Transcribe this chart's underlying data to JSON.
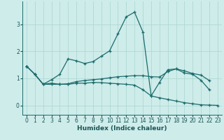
{
  "xlabel": "Humidex (Indice chaleur)",
  "bg_color": "#ceecea",
  "grid_color": "#aed8d4",
  "line_color": "#1a6b6b",
  "xlim": [
    -0.5,
    23.5
  ],
  "ylim": [
    -0.35,
    3.85
  ],
  "yticks": [
    0,
    1,
    2,
    3
  ],
  "xticks": [
    0,
    1,
    2,
    3,
    4,
    5,
    6,
    7,
    8,
    9,
    10,
    11,
    12,
    13,
    14,
    15,
    16,
    17,
    18,
    19,
    20,
    21,
    22,
    23
  ],
  "series": [
    {
      "x": [
        0,
        1,
        2,
        3,
        4,
        5,
        6,
        7,
        8,
        9,
        10,
        11,
        12,
        13,
        14,
        15,
        16,
        17,
        18,
        19,
        20,
        21,
        22
      ],
      "y": [
        1.45,
        1.15,
        0.78,
        0.95,
        1.15,
        1.72,
        1.65,
        1.55,
        1.62,
        1.82,
        2.02,
        2.65,
        3.28,
        3.45,
        2.72,
        0.35,
        0.85,
        1.32,
        1.35,
        1.2,
        1.15,
        0.93,
        0.58
      ]
    },
    {
      "x": [
        0,
        1,
        2,
        3,
        4,
        5,
        6,
        7,
        8,
        9,
        10,
        11,
        12,
        13,
        14,
        15,
        16,
        17,
        18,
        19,
        20,
        21,
        22
      ],
      "y": [
        1.45,
        1.15,
        0.78,
        0.82,
        0.78,
        0.8,
        0.88,
        0.92,
        0.95,
        0.98,
        1.02,
        1.06,
        1.08,
        1.1,
        1.1,
        1.06,
        1.05,
        1.25,
        1.35,
        1.28,
        1.18,
        1.12,
        0.92
      ]
    },
    {
      "x": [
        0,
        1,
        2,
        3,
        4,
        5,
        6,
        7,
        8,
        9,
        10,
        11,
        12,
        13,
        14,
        15,
        16,
        17,
        18,
        19,
        20,
        21,
        22,
        23
      ],
      "y": [
        1.45,
        1.15,
        0.78,
        0.78,
        0.78,
        0.78,
        0.82,
        0.82,
        0.85,
        0.84,
        0.82,
        0.8,
        0.78,
        0.75,
        0.58,
        0.35,
        0.28,
        0.22,
        0.16,
        0.1,
        0.06,
        0.02,
        0.01,
        0.0
      ]
    }
  ]
}
